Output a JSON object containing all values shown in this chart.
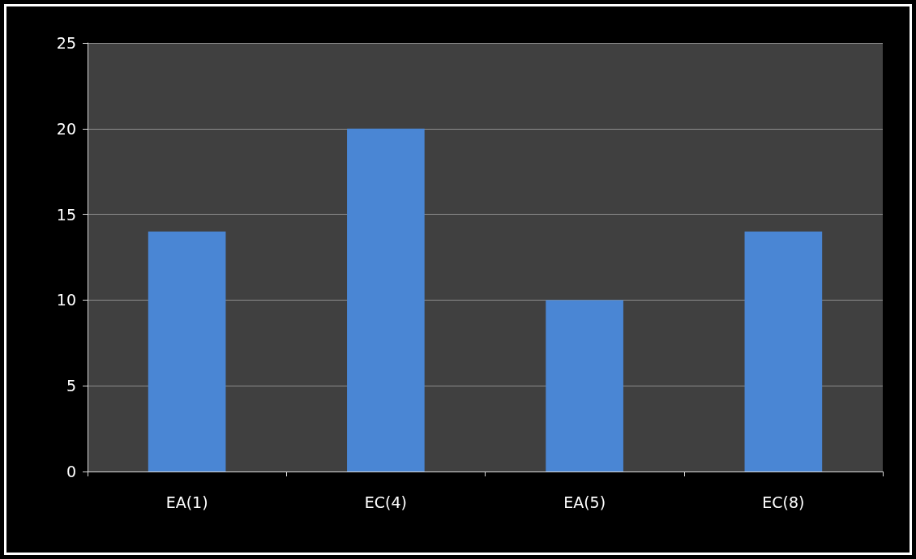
{
  "chart_data": {
    "type": "bar",
    "categories": [
      "EA(1)",
      "EC(4)",
      "EA(5)",
      "EC(8)"
    ],
    "values": [
      14,
      20,
      10,
      14
    ],
    "color": "#4a86d4",
    "ylim": [
      0,
      25
    ],
    "yticks": [
      0,
      5,
      10,
      15,
      20,
      25
    ],
    "grid": "y"
  }
}
